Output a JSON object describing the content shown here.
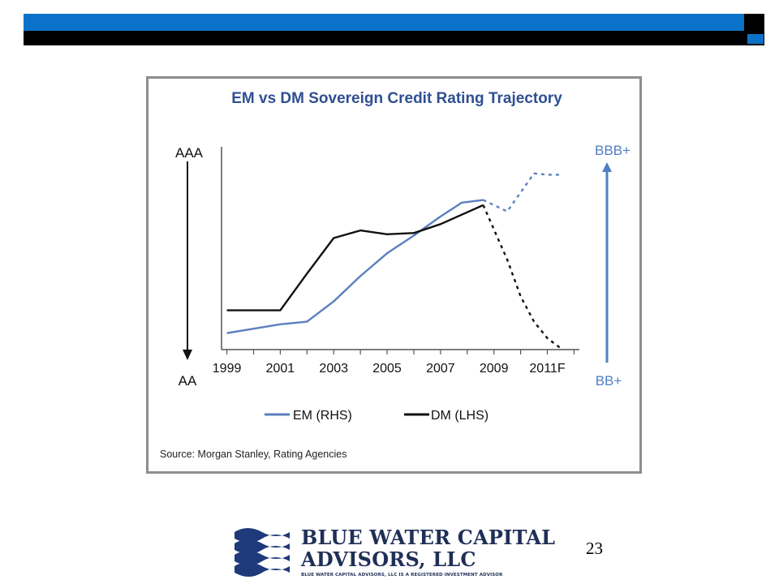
{
  "chart_data": {
    "type": "line",
    "title": "EM vs DM Sovereign Credit Rating Trajectory",
    "x_ticks": [
      "1999",
      "2001",
      "2003",
      "2005",
      "2007",
      "2009",
      "2011F"
    ],
    "left_axis": {
      "top_label": "AAA",
      "bottom_label": "AA"
    },
    "right_axis": {
      "top_label": "BBB+",
      "bottom_label": "BB+"
    },
    "series": [
      {
        "name": "EM (RHS)",
        "color": "#5b7fbf",
        "axis": "right",
        "x": [
          1999,
          2001,
          2002,
          2003,
          2004,
          2005,
          2006,
          2007,
          2007.8,
          2008.6,
          2009.5,
          2010.5,
          2011,
          2011.5
        ],
        "values": [
          0.13,
          0.2,
          0.22,
          0.38,
          0.58,
          0.76,
          0.9,
          1.05,
          1.16,
          1.18,
          1.09,
          1.39,
          1.38,
          1.38
        ],
        "forecast_from_index": 10
      },
      {
        "name": "DM (LHS)",
        "color": "#111111",
        "axis": "left",
        "x": [
          1999,
          2001,
          2002,
          2003,
          2004,
          2005,
          2006,
          2007,
          2008.6,
          2009.5,
          2010,
          2010.5,
          2011,
          2011.5
        ],
        "values": [
          0.31,
          0.31,
          0.6,
          0.88,
          0.94,
          0.91,
          0.92,
          0.99,
          1.14,
          0.71,
          0.42,
          0.22,
          0.09,
          0.01
        ],
        "forecast_from_index": 9
      }
    ],
    "legend": [
      {
        "label": "EM (RHS)",
        "color": "#5b7fbf"
      },
      {
        "label": "DM (LHS)",
        "color": "#111111"
      }
    ],
    "legend_position": "bottom",
    "source": "Source: Morgan Stanley, Rating Agencies",
    "grid": false
  },
  "logo": {
    "line1": "BLUE WATER CAPITAL",
    "line2": "ADVISORS, LLC",
    "tagline": "BLUE WATER CAPITAL ADVISORS, LLC IS A REGISTERED INVESTMENT ADVISOR"
  },
  "page_number": "23",
  "colors": {
    "accent_blue": "#0b72c9",
    "bar_black": "#000000",
    "navy": "#1f2f57"
  }
}
